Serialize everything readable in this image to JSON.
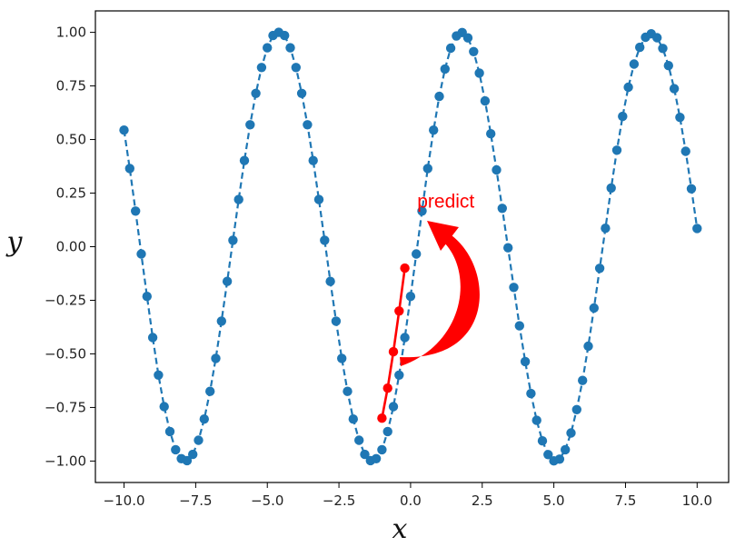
{
  "chart_data": {
    "type": "line",
    "xlabel": "x",
    "ylabel": "y",
    "xlim": [
      -11.0,
      11.1
    ],
    "ylim": [
      -1.1,
      1.1
    ],
    "x_ticks": [
      -10,
      -7.5,
      -5,
      -2.5,
      0,
      2.5,
      5,
      7.5,
      10
    ],
    "x_tick_labels": [
      "−10.0",
      "−7.5",
      "−5.0",
      "−2.5",
      "0.0",
      "2.5",
      "5.0",
      "7.5",
      "10.0"
    ],
    "y_ticks": [
      -1,
      -0.75,
      -0.5,
      -0.25,
      0,
      0.25,
      0.5,
      0.75,
      1
    ],
    "y_tick_labels": [
      "−1.00",
      "−0.75",
      "−0.50",
      "−0.25",
      "0.00",
      "0.25",
      "0.50",
      "0.75",
      "1.00"
    ],
    "grid": false,
    "series": [
      {
        "color": "#1f77b4",
        "line_style": "dashed",
        "x_start": -10.0,
        "x_end": 10.0,
        "x_step": 0.2,
        "y": [
          0.544,
          0.365,
          0.166,
          -0.034,
          -0.232,
          -0.424,
          -0.599,
          -0.746,
          -0.862,
          -0.947,
          -0.989,
          -0.998,
          -0.969,
          -0.903,
          -0.804,
          -0.675,
          -0.521,
          -0.347,
          -0.162,
          0.03,
          0.22,
          0.402,
          0.569,
          0.715,
          0.836,
          0.928,
          0.985,
          1.0,
          0.985,
          0.928,
          0.836,
          0.715,
          0.569,
          0.402,
          0.22,
          0.03,
          -0.162,
          -0.347,
          -0.521,
          -0.675,
          -0.804,
          -0.903,
          -0.969,
          -0.998,
          -0.989,
          -0.947,
          -0.862,
          -0.746,
          -0.599,
          -0.424,
          -0.232,
          -0.034,
          0.166,
          0.365,
          0.544,
          0.701,
          0.829,
          0.926,
          0.983,
          0.999,
          0.974,
          0.91,
          0.81,
          0.68,
          0.527,
          0.358,
          0.179,
          -0.005,
          -0.19,
          -0.369,
          -0.536,
          -0.685,
          -0.81,
          -0.906,
          -0.97,
          -0.999,
          -0.991,
          -0.947,
          -0.869,
          -0.76,
          -0.624,
          -0.464,
          -0.286,
          -0.101,
          0.086,
          0.274,
          0.45,
          0.608,
          0.744,
          0.852,
          0.93,
          0.977,
          0.993,
          0.975,
          0.925,
          0.845,
          0.737,
          0.603,
          0.445,
          0.27,
          0.085
        ]
      },
      {
        "color": "#ff0000",
        "line_style": "solid",
        "highlight": true,
        "x": [
          -1.0,
          -0.8,
          -0.6,
          -0.4,
          -0.2
        ],
        "y": [
          -0.8,
          -0.66,
          -0.49,
          -0.3,
          -0.1
        ]
      }
    ],
    "annotations": [
      {
        "text": "predict",
        "color": "#ff0000",
        "x": 0.2,
        "y": 0.17,
        "arrow": true
      }
    ]
  }
}
